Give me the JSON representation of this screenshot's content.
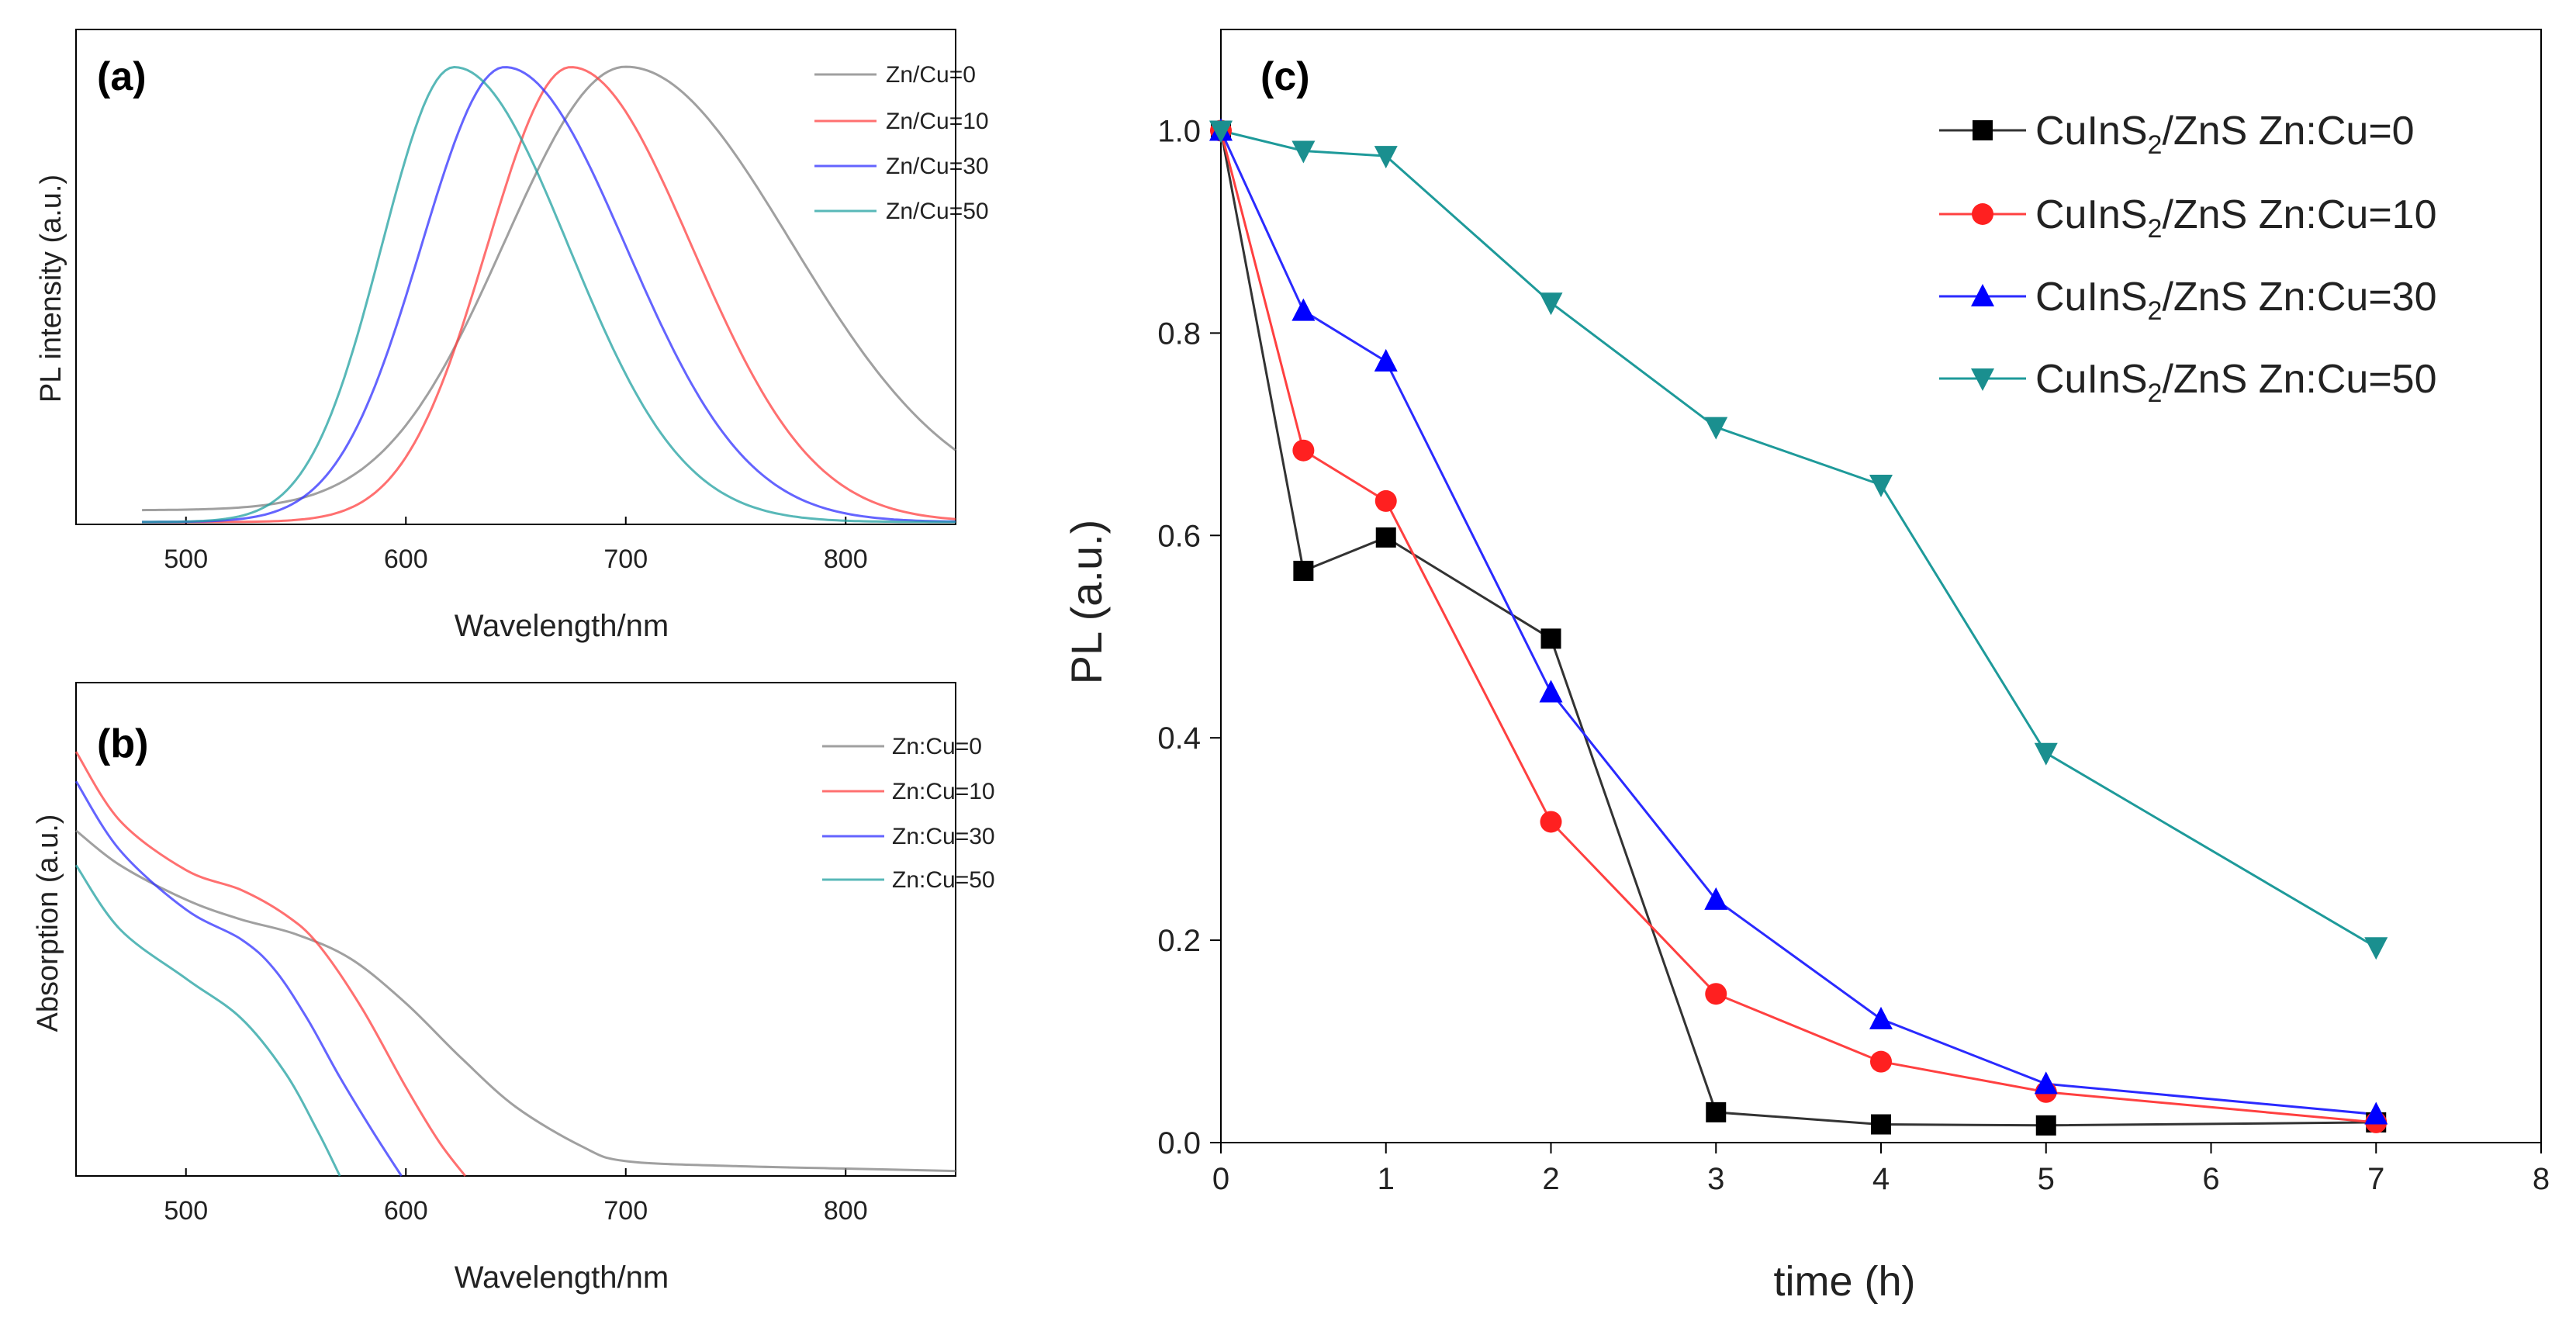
{
  "colors": {
    "zn0": "#808080",
    "zn10": "#ff4040",
    "zn30": "#3030ff",
    "zn50": "#20a0a0",
    "axis": "#000000"
  },
  "chart_data": [
    {
      "panel": "a",
      "panel_label": "(a)",
      "type": "line",
      "xlabel": "Wavelength/nm",
      "ylabel": "PL intensity (a.u.)",
      "xlim": [
        450,
        850
      ],
      "ylim": [
        0,
        1.05
      ],
      "xticks": [
        500,
        600,
        700,
        800
      ],
      "xtick_labels": [
        "500",
        "600",
        "700",
        "800"
      ],
      "legend_position": "top-right",
      "series": [
        {
          "name": "Zn/Cu=0",
          "color_key": "zn0",
          "peak": 700,
          "width_left": 55,
          "width_right": 75,
          "baseline": 0.03,
          "start": 480
        },
        {
          "name": "Zn/Cu=10",
          "color_key": "zn10",
          "peak": 675,
          "width_left": 38,
          "width_right": 55,
          "baseline": 0.005,
          "start": 480
        },
        {
          "name": "Zn/Cu=30",
          "color_key": "zn30",
          "peak": 645,
          "width_left": 38,
          "width_right": 55,
          "baseline": 0.005,
          "start": 480
        },
        {
          "name": "Zn/Cu=50",
          "color_key": "zn50",
          "peak": 622,
          "width_left": 33,
          "width_right": 52,
          "baseline": 0.005,
          "start": 480
        }
      ]
    },
    {
      "panel": "b",
      "panel_label": "(b)",
      "type": "line",
      "xlabel": "Wavelength/nm",
      "ylabel": "Absorption (a.u.)",
      "xlim": [
        450,
        850
      ],
      "ylim": [
        0,
        1.0
      ],
      "xticks": [
        500,
        600,
        700,
        800
      ],
      "xtick_labels": [
        "500",
        "600",
        "700",
        "800"
      ],
      "legend_position": "top-right",
      "series": [
        {
          "name": "Zn:Cu=0",
          "color_key": "zn0",
          "x": [
            450,
            470,
            500,
            525,
            550,
            575,
            600,
            625,
            650,
            680,
            700,
            750,
            800,
            850
          ],
          "y": [
            0.7,
            0.63,
            0.56,
            0.52,
            0.49,
            0.44,
            0.35,
            0.24,
            0.14,
            0.06,
            0.03,
            0.02,
            0.015,
            0.01
          ]
        },
        {
          "name": "Zn:Cu=10",
          "color_key": "zn10",
          "x": [
            450,
            470,
            500,
            525,
            545,
            560,
            580,
            600,
            615,
            627
          ],
          "y": [
            0.86,
            0.72,
            0.62,
            0.58,
            0.53,
            0.47,
            0.34,
            0.18,
            0.07,
            0.0
          ]
        },
        {
          "name": "Zn:Cu=30",
          "color_key": "zn30",
          "x": [
            450,
            470,
            500,
            525,
            540,
            555,
            570,
            585,
            598
          ],
          "y": [
            0.8,
            0.66,
            0.54,
            0.48,
            0.42,
            0.32,
            0.2,
            0.09,
            0.0
          ]
        },
        {
          "name": "Zn:Cu=50",
          "color_key": "zn50",
          "x": [
            450,
            470,
            500,
            525,
            545,
            560,
            570
          ],
          "y": [
            0.63,
            0.5,
            0.4,
            0.32,
            0.21,
            0.09,
            0.0
          ]
        }
      ]
    },
    {
      "panel": "c",
      "panel_label": "(c)",
      "type": "line",
      "xlabel": "time (h)",
      "ylabel": "PL (a.u.)",
      "xlim": [
        0,
        8
      ],
      "ylim": [
        0,
        1.1
      ],
      "xticks": [
        0,
        1,
        2,
        3,
        4,
        5,
        6,
        7,
        8
      ],
      "xtick_labels": [
        "0",
        "1",
        "2",
        "3",
        "4",
        "5",
        "6",
        "7",
        "8"
      ],
      "yticks": [
        0.0,
        0.2,
        0.4,
        0.6,
        0.8,
        1.0
      ],
      "ytick_labels": [
        "0.0",
        "0.2",
        "0.4",
        "0.6",
        "0.8",
        "1.0"
      ],
      "legend_position": "top-right",
      "series": [
        {
          "name_main": "CuInS",
          "name_sub": "2",
          "name_rest": "/ZnS Zn:Cu=0",
          "color_key": "zn0",
          "line_color": "#333333",
          "marker_color": "#000000",
          "marker": "square",
          "x": [
            0,
            0.5,
            1,
            2,
            3,
            4,
            5,
            7
          ],
          "y": [
            1.0,
            0.565,
            0.598,
            0.498,
            0.03,
            0.018,
            0.017,
            0.02
          ]
        },
        {
          "name_main": "CuInS",
          "name_sub": "2",
          "name_rest": "/ZnS Zn:Cu=10",
          "color_key": "zn10",
          "line_color": "#ff4040",
          "marker_color": "#ff2020",
          "marker": "circle",
          "x": [
            0,
            0.5,
            1,
            2,
            3,
            4,
            5,
            7
          ],
          "y": [
            1.0,
            0.684,
            0.634,
            0.317,
            0.147,
            0.08,
            0.05,
            0.02
          ]
        },
        {
          "name_main": "CuInS",
          "name_sub": "2",
          "name_rest": "/ZnS Zn:Cu=30",
          "color_key": "zn30",
          "line_color": "#2a2aff",
          "marker_color": "#0000ff",
          "marker": "triangle-up",
          "x": [
            0,
            0.5,
            1,
            2,
            3,
            4,
            5,
            7
          ],
          "y": [
            1.0,
            0.822,
            0.772,
            0.445,
            0.24,
            0.122,
            0.058,
            0.028
          ]
        },
        {
          "name_main": "CuInS",
          "name_sub": "2",
          "name_rest": "/ZnS Zn:Cu=50",
          "color_key": "zn50",
          "line_color": "#1e9a9a",
          "marker_color": "#1a8f8f",
          "marker": "triangle-down",
          "x": [
            0,
            0.5,
            1,
            2,
            3,
            4,
            5,
            7
          ],
          "y": [
            1.0,
            0.98,
            0.975,
            0.83,
            0.707,
            0.65,
            0.385,
            0.193
          ]
        }
      ]
    }
  ]
}
